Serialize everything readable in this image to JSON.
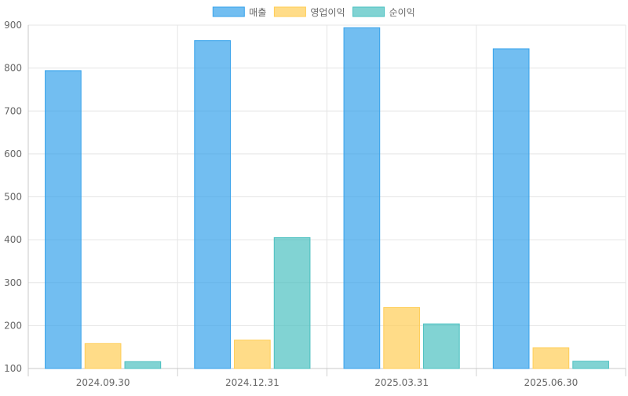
{
  "chart_data": {
    "type": "bar",
    "categories": [
      "2024.09.30",
      "2024.12.31",
      "2025.03.31",
      "2025.06.30"
    ],
    "series": [
      {
        "name": "매출",
        "values": [
          794,
          864,
          894,
          845
        ],
        "fill": "#36A2EB",
        "stroke": "#36A2EB"
      },
      {
        "name": "영업이익",
        "values": [
          158,
          166,
          242,
          148
        ],
        "fill": "#FFCD56",
        "stroke": "#FFCD56"
      },
      {
        "name": "순이익",
        "values": [
          116,
          405,
          204,
          117
        ],
        "fill": "#4BC0C0",
        "stroke": "#4BC0C0"
      }
    ],
    "title": "",
    "xlabel": "",
    "ylabel": "",
    "ylim": [
      100,
      900
    ],
    "yticks": [
      100,
      200,
      300,
      400,
      500,
      600,
      700,
      800,
      900
    ],
    "grid": true,
    "legend_position": "top-center"
  }
}
